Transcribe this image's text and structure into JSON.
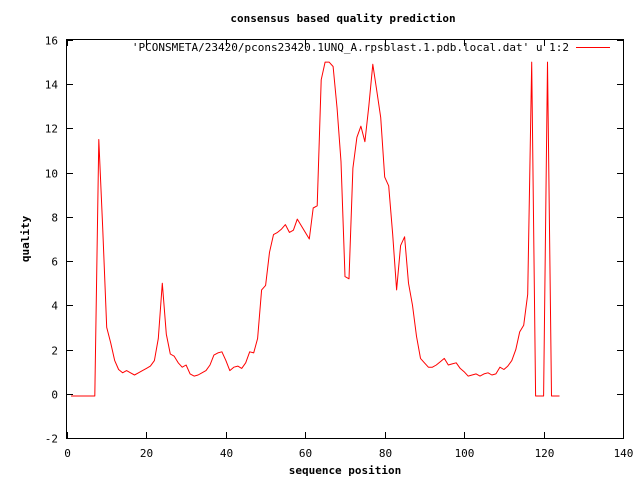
{
  "chart_data": {
    "type": "line",
    "title": "consensus based quality prediction",
    "xlabel": "sequence position",
    "ylabel": "quality",
    "xlim": [
      0,
      140
    ],
    "ylim": [
      -2,
      16
    ],
    "x_ticks": [
      0,
      20,
      40,
      60,
      80,
      100,
      120,
      140
    ],
    "y_ticks": [
      -2,
      0,
      2,
      4,
      6,
      8,
      10,
      12,
      14,
      16
    ],
    "grid": false,
    "legend_position": "top-right",
    "series": [
      {
        "name": "'PCONSMETA/23420/pcons23420.1UNQ_A.rpsblast.1.pdb.local.dat' u 1:2",
        "color": "#ff0000",
        "x": [
          1,
          2,
          3,
          4,
          5,
          6,
          7,
          8,
          9,
          10,
          11,
          12,
          13,
          14,
          15,
          16,
          17,
          18,
          19,
          20,
          21,
          22,
          23,
          24,
          25,
          26,
          27,
          28,
          29,
          30,
          31,
          32,
          33,
          34,
          35,
          36,
          37,
          38,
          39,
          40,
          41,
          42,
          43,
          44,
          45,
          46,
          47,
          48,
          49,
          50,
          51,
          52,
          53,
          54,
          55,
          56,
          57,
          58,
          59,
          60,
          61,
          62,
          63,
          64,
          65,
          66,
          67,
          68,
          69,
          70,
          71,
          72,
          73,
          74,
          75,
          76,
          77,
          78,
          79,
          80,
          81,
          82,
          83,
          84,
          85,
          86,
          87,
          88,
          89,
          90,
          91,
          92,
          93,
          94,
          95,
          96,
          97,
          98,
          99,
          100,
          101,
          102,
          103,
          104,
          105,
          106,
          107,
          108,
          109,
          110,
          111,
          112,
          113,
          114,
          115,
          116,
          117,
          118,
          119,
          120,
          121,
          122,
          123,
          124
        ],
        "y": [
          -0.1,
          -0.1,
          -0.1,
          -0.1,
          -0.1,
          -0.1,
          -0.1,
          11.5,
          7.5,
          3.0,
          2.3,
          1.5,
          1.1,
          0.95,
          1.05,
          0.95,
          0.85,
          0.95,
          1.05,
          1.15,
          1.25,
          1.5,
          2.5,
          5.0,
          2.7,
          1.8,
          1.7,
          1.4,
          1.2,
          1.3,
          0.9,
          0.8,
          0.85,
          0.95,
          1.05,
          1.3,
          1.75,
          1.85,
          1.9,
          1.5,
          1.05,
          1.2,
          1.25,
          1.15,
          1.4,
          1.9,
          1.85,
          2.5,
          4.7,
          4.9,
          6.4,
          7.2,
          7.3,
          7.45,
          7.65,
          7.3,
          7.4,
          7.9,
          7.6,
          7.3,
          7.0,
          8.4,
          8.5,
          14.2,
          15.0,
          15.0,
          14.8,
          12.9,
          10.5,
          5.3,
          5.2,
          10.2,
          11.6,
          12.1,
          11.4,
          13.0,
          14.9,
          13.7,
          12.5,
          9.8,
          9.4,
          7.2,
          4.7,
          6.7,
          7.1,
          5.0,
          4.0,
          2.6,
          1.6,
          1.4,
          1.2,
          1.2,
          1.3,
          1.45,
          1.6,
          1.3,
          1.35,
          1.4,
          1.15,
          1.0,
          0.8,
          0.85,
          0.9,
          0.8,
          0.9,
          0.95,
          0.85,
          0.9,
          1.2,
          1.1,
          1.25,
          1.5,
          2.0,
          2.8,
          3.1,
          4.5,
          15.0,
          -0.1,
          -0.1,
          -0.1,
          15.0,
          -0.1,
          -0.1,
          -0.1
        ]
      }
    ]
  }
}
